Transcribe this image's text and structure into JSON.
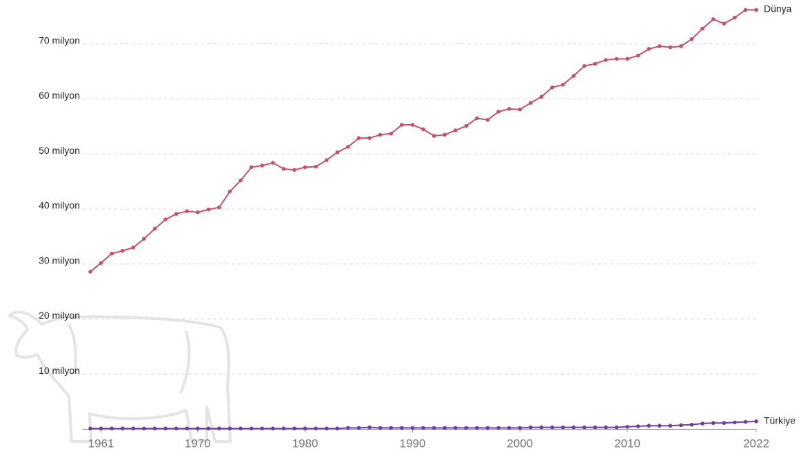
{
  "chart_data": {
    "type": "line",
    "x": [
      1960,
      1961,
      1962,
      1963,
      1964,
      1965,
      1966,
      1967,
      1968,
      1969,
      1970,
      1971,
      1972,
      1973,
      1974,
      1975,
      1976,
      1977,
      1978,
      1979,
      1980,
      1981,
      1982,
      1983,
      1984,
      1985,
      1986,
      1987,
      1988,
      1989,
      1990,
      1991,
      1992,
      1993,
      1994,
      1995,
      1996,
      1997,
      1998,
      1999,
      2000,
      2001,
      2002,
      2003,
      2004,
      2005,
      2006,
      2007,
      2008,
      2009,
      2010,
      2011,
      2012,
      2013,
      2014,
      2015,
      2016,
      2017,
      2018,
      2019,
      2020,
      2021,
      2022
    ],
    "series": [
      {
        "name": "Dünya",
        "color": "#c6506a",
        "values": [
          28.6,
          30.2,
          31.9,
          32.4,
          33.0,
          34.6,
          36.4,
          38.1,
          39.1,
          39.6,
          39.4,
          39.9,
          40.3,
          43.2,
          45.2,
          47.6,
          47.9,
          48.4,
          47.3,
          47.1,
          47.6,
          47.7,
          48.9,
          50.3,
          51.3,
          52.9,
          52.9,
          53.5,
          53.7,
          55.3,
          55.3,
          54.5,
          53.3,
          53.5,
          54.3,
          55.1,
          56.5,
          56.2,
          57.7,
          58.2,
          58.1,
          59.3,
          60.4,
          62.1,
          62.6,
          64.2,
          66.0,
          66.4,
          67.1,
          67.3,
          67.3,
          67.9,
          69.1,
          69.6,
          69.4,
          69.6,
          70.9,
          72.8,
          74.5,
          73.7,
          74.8,
          76.2,
          76.2
        ]
      },
      {
        "name": "Türkiye",
        "color": "#6b3fa0",
        "values": [
          0.1,
          0.1,
          0.1,
          0.1,
          0.1,
          0.1,
          0.1,
          0.1,
          0.1,
          0.1,
          0.1,
          0.1,
          0.1,
          0.1,
          0.1,
          0.1,
          0.1,
          0.1,
          0.1,
          0.1,
          0.1,
          0.1,
          0.1,
          0.1,
          0.2,
          0.2,
          0.3,
          0.2,
          0.2,
          0.2,
          0.2,
          0.2,
          0.2,
          0.2,
          0.2,
          0.2,
          0.2,
          0.2,
          0.2,
          0.2,
          0.2,
          0.3,
          0.3,
          0.3,
          0.3,
          0.3,
          0.3,
          0.3,
          0.3,
          0.3,
          0.4,
          0.5,
          0.6,
          0.6,
          0.6,
          0.7,
          0.8,
          1.0,
          1.1,
          1.1,
          1.2,
          1.3,
          1.4
        ]
      }
    ],
    "xlim": [
      1960,
      2022
    ],
    "xticks": [
      1961,
      1970,
      1980,
      1990,
      2000,
      2010,
      2022
    ],
    "ylim": [
      0,
      78
    ],
    "yticks": [
      {
        "value": 10,
        "label": "10 milyon"
      },
      {
        "value": 20,
        "label": "20 milyon"
      },
      {
        "value": 30,
        "label": "30 milyon"
      },
      {
        "value": 40,
        "label": "40 milyon"
      },
      {
        "value": 50,
        "label": "50 milyon"
      },
      {
        "value": 60,
        "label": "60 milyon"
      },
      {
        "value": 70,
        "label": "70 milyon"
      }
    ],
    "grid": true
  }
}
